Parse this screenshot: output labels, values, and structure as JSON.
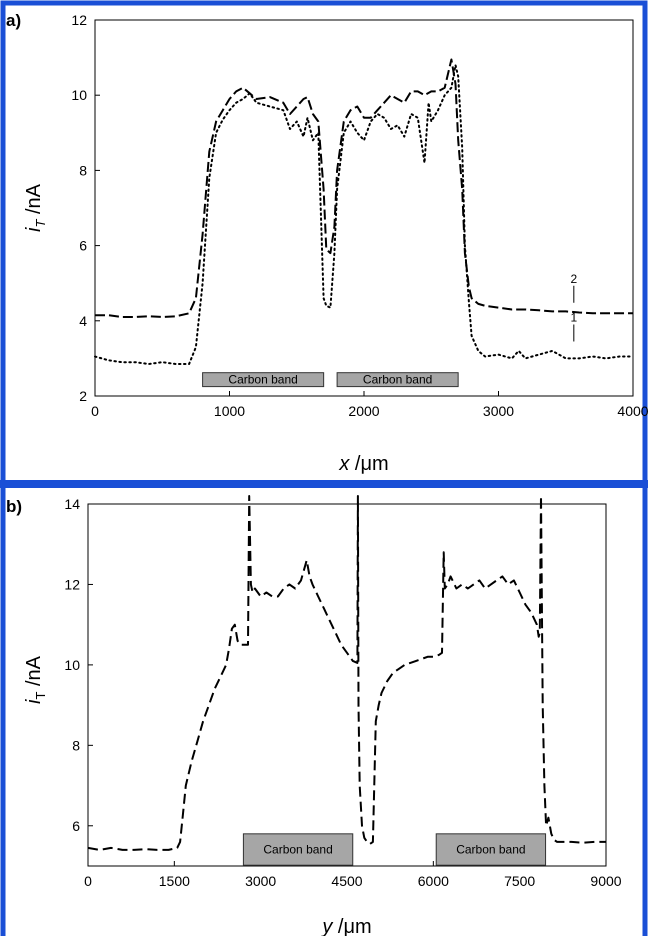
{
  "colors": {
    "frame": "#1a4fd6",
    "band": "#a6a6a6",
    "line": "#000000"
  },
  "chart_data": [
    {
      "type": "line",
      "panel_label": "a)",
      "xlabel_var": "x",
      "xlabel_unit": " /μm",
      "ylabel_var": "i",
      "ylabel_sub": "T",
      "ylabel_unit": " /nA",
      "xlim": [
        0,
        4000
      ],
      "ylim": [
        2,
        12
      ],
      "xticks": [
        0,
        1000,
        2000,
        3000,
        4000
      ],
      "xtick_labels": [
        "0",
        "1000",
        "2000",
        "3000",
        "4000"
      ],
      "yticks": [
        2,
        4,
        6,
        8,
        10,
        12
      ],
      "ytick_labels": [
        "2",
        "4",
        "6",
        "8",
        "10",
        "12"
      ],
      "grid": false,
      "bands": [
        {
          "label": "Carbon band",
          "x_start": 800,
          "x_end": 1700,
          "y_bottom": 2.25,
          "y_top": 2.62
        },
        {
          "label": "Carbon band",
          "x_start": 1800,
          "x_end": 2700,
          "y_bottom": 2.25,
          "y_top": 2.62
        }
      ],
      "series": [
        {
          "name": "1",
          "dash": "1.5 3.5",
          "label_at": [
            3560,
            3.45
          ],
          "x": [
            0,
            100,
            200,
            300,
            400,
            500,
            600,
            700,
            750,
            800,
            850,
            900,
            950,
            1000,
            1050,
            1100,
            1150,
            1200,
            1300,
            1400,
            1450,
            1500,
            1550,
            1580,
            1620,
            1660,
            1700,
            1720,
            1750,
            1780,
            1800,
            1850,
            1900,
            1950,
            2000,
            2050,
            2100,
            2150,
            2200,
            2250,
            2300,
            2350,
            2400,
            2450,
            2480,
            2500,
            2550,
            2600,
            2650,
            2680,
            2700,
            2730,
            2750,
            2780,
            2800,
            2850,
            2900,
            3000,
            3100,
            3150,
            3200,
            3300,
            3400,
            3500,
            3600,
            3700,
            3800,
            3900,
            4000
          ],
          "y": [
            3.05,
            2.95,
            2.9,
            2.9,
            2.85,
            2.9,
            2.85,
            2.85,
            3.3,
            5.0,
            7.8,
            9.0,
            9.35,
            9.6,
            9.8,
            9.9,
            10.05,
            9.8,
            9.7,
            9.6,
            9.1,
            9.3,
            8.9,
            9.4,
            8.8,
            9.0,
            4.6,
            4.4,
            4.35,
            5.8,
            7.5,
            9.0,
            9.3,
            9.0,
            8.8,
            9.3,
            9.5,
            9.4,
            9.1,
            9.2,
            8.9,
            9.5,
            9.4,
            8.2,
            9.8,
            9.3,
            9.6,
            10.0,
            10.2,
            10.8,
            10.5,
            8.6,
            6.0,
            4.5,
            3.6,
            3.2,
            3.05,
            3.1,
            3.0,
            3.2,
            3.0,
            3.1,
            3.2,
            3.0,
            3.0,
            3.05,
            3.0,
            3.05,
            3.05
          ]
        },
        {
          "name": "2",
          "dash": "10 4",
          "label_at": [
            3560,
            4.48
          ],
          "x": [
            0,
            100,
            200,
            300,
            400,
            500,
            600,
            700,
            750,
            800,
            850,
            900,
            950,
            1000,
            1050,
            1100,
            1150,
            1200,
            1300,
            1400,
            1450,
            1500,
            1550,
            1580,
            1620,
            1660,
            1700,
            1720,
            1750,
            1780,
            1800,
            1850,
            1900,
            1950,
            2000,
            2050,
            2100,
            2150,
            2200,
            2250,
            2300,
            2350,
            2400,
            2450,
            2500,
            2550,
            2600,
            2650,
            2680,
            2700,
            2730,
            2750,
            2780,
            2800,
            2850,
            2900,
            3000,
            3100,
            3200,
            3300,
            3400,
            3500,
            3600,
            3700,
            3800,
            3900,
            4000
          ],
          "y": [
            4.15,
            4.15,
            4.1,
            4.1,
            4.12,
            4.1,
            4.12,
            4.2,
            4.6,
            6.3,
            8.5,
            9.3,
            9.6,
            9.9,
            10.1,
            10.2,
            10.05,
            9.9,
            9.95,
            9.8,
            9.5,
            9.7,
            9.9,
            9.95,
            9.5,
            9.3,
            7.5,
            5.9,
            5.8,
            6.5,
            8.0,
            9.3,
            9.6,
            9.7,
            9.4,
            9.4,
            9.6,
            9.8,
            10.0,
            9.9,
            9.8,
            10.1,
            10.1,
            10.0,
            10.1,
            10.1,
            10.2,
            10.95,
            10.3,
            8.8,
            7.5,
            5.8,
            4.9,
            4.6,
            4.45,
            4.4,
            4.35,
            4.3,
            4.3,
            4.28,
            4.25,
            4.25,
            4.22,
            4.2,
            4.2,
            4.2,
            4.2
          ]
        }
      ]
    },
    {
      "type": "line",
      "panel_label": "b)",
      "xlabel_var": "y",
      "xlabel_unit": " /μm",
      "ylabel_var": "i",
      "ylabel_sub": "T",
      "ylabel_unit": " /nA",
      "xlim": [
        0,
        9000
      ],
      "ylim": [
        5,
        14
      ],
      "xticks": [
        0,
        1500,
        3000,
        4500,
        6000,
        7500,
        9000
      ],
      "xtick_labels": [
        "0",
        "1500",
        "3000",
        "4500",
        "6000",
        "7500",
        "9000"
      ],
      "yticks": [
        6,
        8,
        10,
        12,
        14
      ],
      "ytick_labels": [
        "6",
        "8",
        "10",
        "12",
        "14"
      ],
      "grid": false,
      "bands": [
        {
          "label": "Carbon band",
          "x_start": 2700,
          "x_end": 4600,
          "y_bottom": 5.02,
          "y_top": 5.8
        },
        {
          "label": "Carbon band",
          "x_start": 6050,
          "x_end": 7950,
          "y_bottom": 5.02,
          "y_top": 5.8
        }
      ],
      "series": [
        {
          "name": "",
          "dash": "10 5",
          "label_at": null,
          "x": [
            0,
            200,
            400,
            600,
            800,
            1000,
            1200,
            1400,
            1550,
            1600,
            1650,
            1700,
            1800,
            1900,
            2000,
            2100,
            2200,
            2300,
            2400,
            2450,
            2500,
            2550,
            2600,
            2650,
            2700,
            2750,
            2780,
            2800,
            2830,
            2860,
            2900,
            3000,
            3100,
            3200,
            3300,
            3400,
            3500,
            3600,
            3700,
            3800,
            3850,
            3900,
            4000,
            4100,
            4200,
            4300,
            4400,
            4500,
            4600,
            4680,
            4690,
            4700,
            4720,
            4760,
            4800,
            4850,
            4900,
            4950,
            5000,
            5050,
            5100,
            5200,
            5300,
            5400,
            5500,
            5600,
            5700,
            5800,
            5900,
            6000,
            6100,
            6150,
            6180,
            6200,
            6250,
            6300,
            6400,
            6500,
            6600,
            6700,
            6800,
            6900,
            7000,
            7100,
            7200,
            7300,
            7400,
            7500,
            7600,
            7700,
            7800,
            7830,
            7850,
            7870,
            7900,
            7930,
            7960,
            8000,
            8050,
            8100,
            8150,
            8200,
            8400,
            8600,
            8800,
            9000
          ],
          "y": [
            5.45,
            5.4,
            5.45,
            5.4,
            5.4,
            5.42,
            5.4,
            5.4,
            5.45,
            5.6,
            6.3,
            7.0,
            7.6,
            8.1,
            8.6,
            9.0,
            9.4,
            9.7,
            10.0,
            10.4,
            10.9,
            11.0,
            10.6,
            10.5,
            10.5,
            10.5,
            10.5,
            14.2,
            12.0,
            11.8,
            11.9,
            11.7,
            11.8,
            11.7,
            11.7,
            11.9,
            12.0,
            11.9,
            12.1,
            12.6,
            12.2,
            12.0,
            11.7,
            11.4,
            11.1,
            10.8,
            10.5,
            10.3,
            10.1,
            10.05,
            14.2,
            9.0,
            7.0,
            6.0,
            5.7,
            5.6,
            5.55,
            5.6,
            8.6,
            9.0,
            9.3,
            9.6,
            9.8,
            9.9,
            10.0,
            10.05,
            10.1,
            10.15,
            10.2,
            10.2,
            10.25,
            10.3,
            12.8,
            11.9,
            12.0,
            12.2,
            11.9,
            12.0,
            11.9,
            12.0,
            12.1,
            11.9,
            12.0,
            12.1,
            12.2,
            12.0,
            12.1,
            11.8,
            11.5,
            11.3,
            11.0,
            10.7,
            10.8,
            14.2,
            9.0,
            7.0,
            6.0,
            6.2,
            5.8,
            5.65,
            5.6,
            5.6,
            5.6,
            5.58,
            5.6,
            5.6
          ]
        }
      ]
    }
  ]
}
